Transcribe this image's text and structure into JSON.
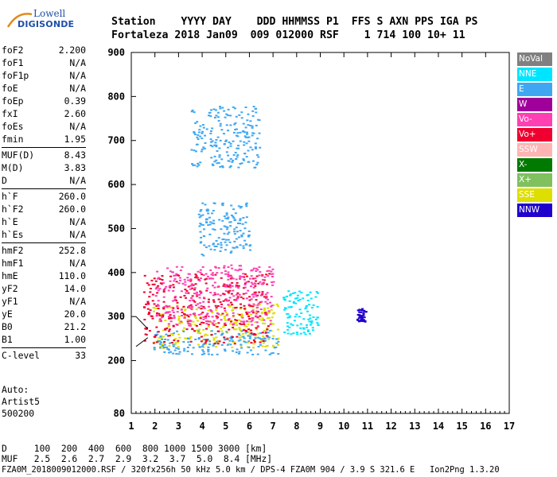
{
  "logo": {
    "top": "Lowell",
    "bottom": "DIGISONDE"
  },
  "header": {
    "row1": [
      "Station",
      "YYYY DAY",
      "DDD HHMMSS P1",
      "FFS S AXN PPS IGA PS"
    ],
    "row1_text": "Station    YYYY DAY    DDD HHMMSS P1  FFS S AXN PPS IGA PS",
    "row2_text": "Fortaleza 2018 Jan09  009 012000 RSF    1 714 100 10+ 11"
  },
  "params": {
    "group1": [
      {
        "label": "foF2",
        "value": "2.200"
      },
      {
        "label": "foF1",
        "value": "N/A"
      },
      {
        "label": "foF1p",
        "value": "N/A"
      },
      {
        "label": "foE",
        "value": "N/A"
      },
      {
        "label": "foEp",
        "value": "0.39"
      },
      {
        "label": "fxI",
        "value": "2.60"
      },
      {
        "label": "foEs",
        "value": "N/A"
      },
      {
        "label": "fmin",
        "value": "1.95"
      }
    ],
    "group2": [
      {
        "label": "MUF(D)",
        "value": "8.43"
      },
      {
        "label": "M(D)",
        "value": "3.83"
      },
      {
        "label": "D",
        "value": "N/A"
      }
    ],
    "group3": [
      {
        "label": "h`F",
        "value": "260.0"
      },
      {
        "label": "h`F2",
        "value": "260.0"
      },
      {
        "label": "h`E",
        "value": "N/A"
      },
      {
        "label": "h`Es",
        "value": "N/A"
      }
    ],
    "group4": [
      {
        "label": "hmF2",
        "value": "252.8"
      },
      {
        "label": "hmF1",
        "value": "N/A"
      },
      {
        "label": "hmE",
        "value": "110.0"
      },
      {
        "label": "yF2",
        "value": "14.0"
      },
      {
        "label": "yF1",
        "value": "N/A"
      },
      {
        "label": "yE",
        "value": "20.0"
      },
      {
        "label": "B0",
        "value": "21.2"
      },
      {
        "label": "B1",
        "value": "1.00"
      }
    ],
    "group5": [
      {
        "label": "C-level",
        "value": "33"
      }
    ]
  },
  "auto": {
    "line1": "Auto:",
    "line2": "Artist5",
    "line3": "500200"
  },
  "footer": {
    "d_row": "D     100  200  400  600  800 1000 1500 3000 [km]",
    "muf_row": "MUF   2.5  2.6  2.7  2.9  3.2  3.7  5.0  8.4 [MHz]",
    "file_row": "FZA0M_2018009012000.RSF / 320fx256h 50 kHz 5.0 km / DPS-4 FZA0M 904 / 3.9 S 321.6 E   Ion2Png 1.3.20"
  },
  "legend": [
    {
      "label": "NoVal",
      "color": "#808080"
    },
    {
      "label": "NNE",
      "color": "#00e5ff"
    },
    {
      "label": "E",
      "color": "#3fa7f2"
    },
    {
      "label": "W",
      "color": "#a0009a"
    },
    {
      "label": "Vo-",
      "color": "#ff3fb2"
    },
    {
      "label": "Vo+",
      "color": "#ef0030"
    },
    {
      "label": "SSW",
      "color": "#ffb4b4"
    },
    {
      "label": "X-",
      "color": "#007a00"
    },
    {
      "label": "X+",
      "color": "#7fc05f"
    },
    {
      "label": "SSE",
      "color": "#dede00"
    },
    {
      "label": "NNW",
      "color": "#2000cc"
    }
  ],
  "chart_data": {
    "type": "scatter",
    "title": "",
    "xlabel": "",
    "ylabel": "",
    "xlim": [
      1,
      17
    ],
    "ylim": [
      80,
      900
    ],
    "xticks": [
      1,
      2,
      3,
      4,
      5,
      6,
      7,
      8,
      9,
      10,
      11,
      12,
      13,
      14,
      15,
      16,
      17
    ],
    "yticks": [
      80,
      200,
      300,
      400,
      500,
      600,
      700,
      800,
      900
    ],
    "grid": false,
    "legend_position": "right",
    "series_regions": [
      {
        "name": "SSE",
        "x": [
          1.9,
          7.2
        ],
        "y": [
          230,
          330
        ]
      },
      {
        "name": "E",
        "x": [
          1.9,
          7.2
        ],
        "y": [
          215,
          270
        ]
      },
      {
        "name": "Vo+",
        "x": [
          1.5,
          6.8
        ],
        "y": [
          240,
          400
        ]
      },
      {
        "name": "Vo-",
        "x": [
          2.0,
          7.0
        ],
        "y": [
          280,
          420
        ]
      },
      {
        "name": "E",
        "x": [
          3.8,
          6.0
        ],
        "y": [
          440,
          560
        ]
      },
      {
        "name": "E",
        "x": [
          3.5,
          6.4
        ],
        "y": [
          640,
          780
        ]
      },
      {
        "name": "NNE",
        "x": [
          7.4,
          8.9
        ],
        "y": [
          260,
          360
        ]
      },
      {
        "name": "NNW",
        "x": [
          10.5,
          10.9
        ],
        "y": [
          290,
          320
        ]
      }
    ]
  }
}
